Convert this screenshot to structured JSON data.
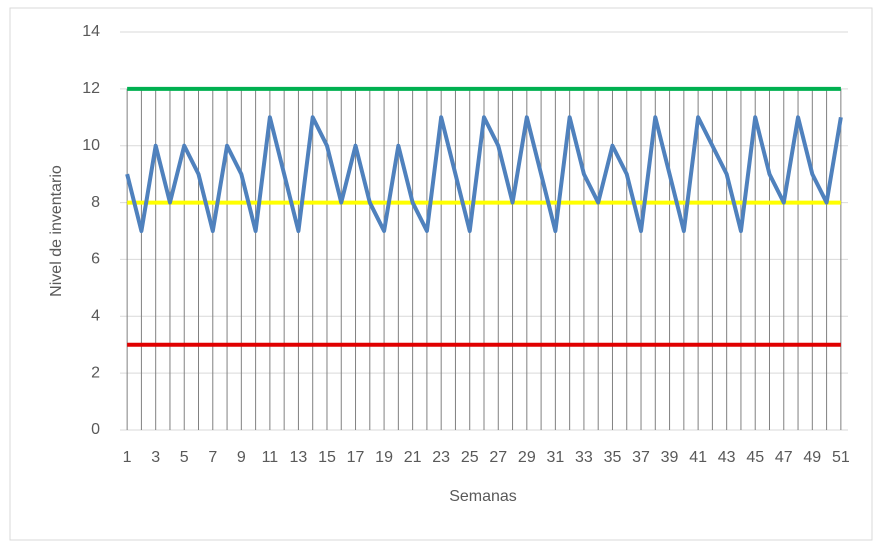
{
  "chart_data": {
    "type": "line",
    "x_label": "Semanas",
    "y_label": "Nivel de inventario",
    "categories": [
      "1",
      null,
      "3",
      null,
      "5",
      null,
      "7",
      null,
      "9",
      null,
      "11",
      null,
      "13",
      null,
      "15",
      null,
      "17",
      null,
      "19",
      null,
      "21",
      null,
      "23",
      null,
      "25",
      null,
      "27",
      null,
      "29",
      null,
      "31",
      null,
      "33",
      null,
      "35",
      null,
      "37",
      null,
      "39",
      null,
      "41",
      null,
      "43",
      null,
      "45",
      null,
      "47",
      null,
      "49",
      null,
      "51"
    ],
    "series": [
      {
        "color": "#00b050",
        "values": [
          12,
          12,
          12,
          12,
          12,
          12,
          12,
          12,
          12,
          12,
          12,
          12,
          12,
          12,
          12,
          12,
          12,
          12,
          12,
          12,
          12,
          12,
          12,
          12,
          12,
          12,
          12,
          12,
          12,
          12,
          12,
          12,
          12,
          12,
          12,
          12,
          12,
          12,
          12,
          12,
          12,
          12,
          12,
          12,
          12,
          12,
          12,
          12,
          12,
          12,
          12
        ]
      },
      {
        "color": "#ffff00",
        "values": [
          8,
          8,
          8,
          8,
          8,
          8,
          8,
          8,
          8,
          8,
          8,
          8,
          8,
          8,
          8,
          8,
          8,
          8,
          8,
          8,
          8,
          8,
          8,
          8,
          8,
          8,
          8,
          8,
          8,
          8,
          8,
          8,
          8,
          8,
          8,
          8,
          8,
          8,
          8,
          8,
          8,
          8,
          8,
          8,
          8,
          8,
          8,
          8,
          8,
          8,
          8
        ]
      },
      {
        "color": "#e00000",
        "values": [
          3,
          3,
          3,
          3,
          3,
          3,
          3,
          3,
          3,
          3,
          3,
          3,
          3,
          3,
          3,
          3,
          3,
          3,
          3,
          3,
          3,
          3,
          3,
          3,
          3,
          3,
          3,
          3,
          3,
          3,
          3,
          3,
          3,
          3,
          3,
          3,
          3,
          3,
          3,
          3,
          3,
          3,
          3,
          3,
          3,
          3,
          3,
          3,
          3,
          3,
          3
        ]
      },
      {
        "color": "#4f81bd",
        "values": [
          9,
          7,
          10,
          8,
          10,
          9,
          7,
          10,
          9,
          7,
          11,
          9,
          7,
          11,
          10,
          8,
          10,
          8,
          7,
          10,
          8,
          7,
          11,
          9,
          7,
          11,
          10,
          8,
          11,
          9,
          7,
          11,
          9,
          8,
          10,
          9,
          7,
          11,
          9,
          7,
          11,
          10,
          9,
          7,
          11,
          9,
          8,
          11,
          9,
          8,
          11
        ]
      }
    ],
    "ylim": [
      0,
      14
    ],
    "yticks": [
      0,
      2,
      4,
      6,
      8,
      10,
      12,
      14
    ],
    "grid": true
  }
}
